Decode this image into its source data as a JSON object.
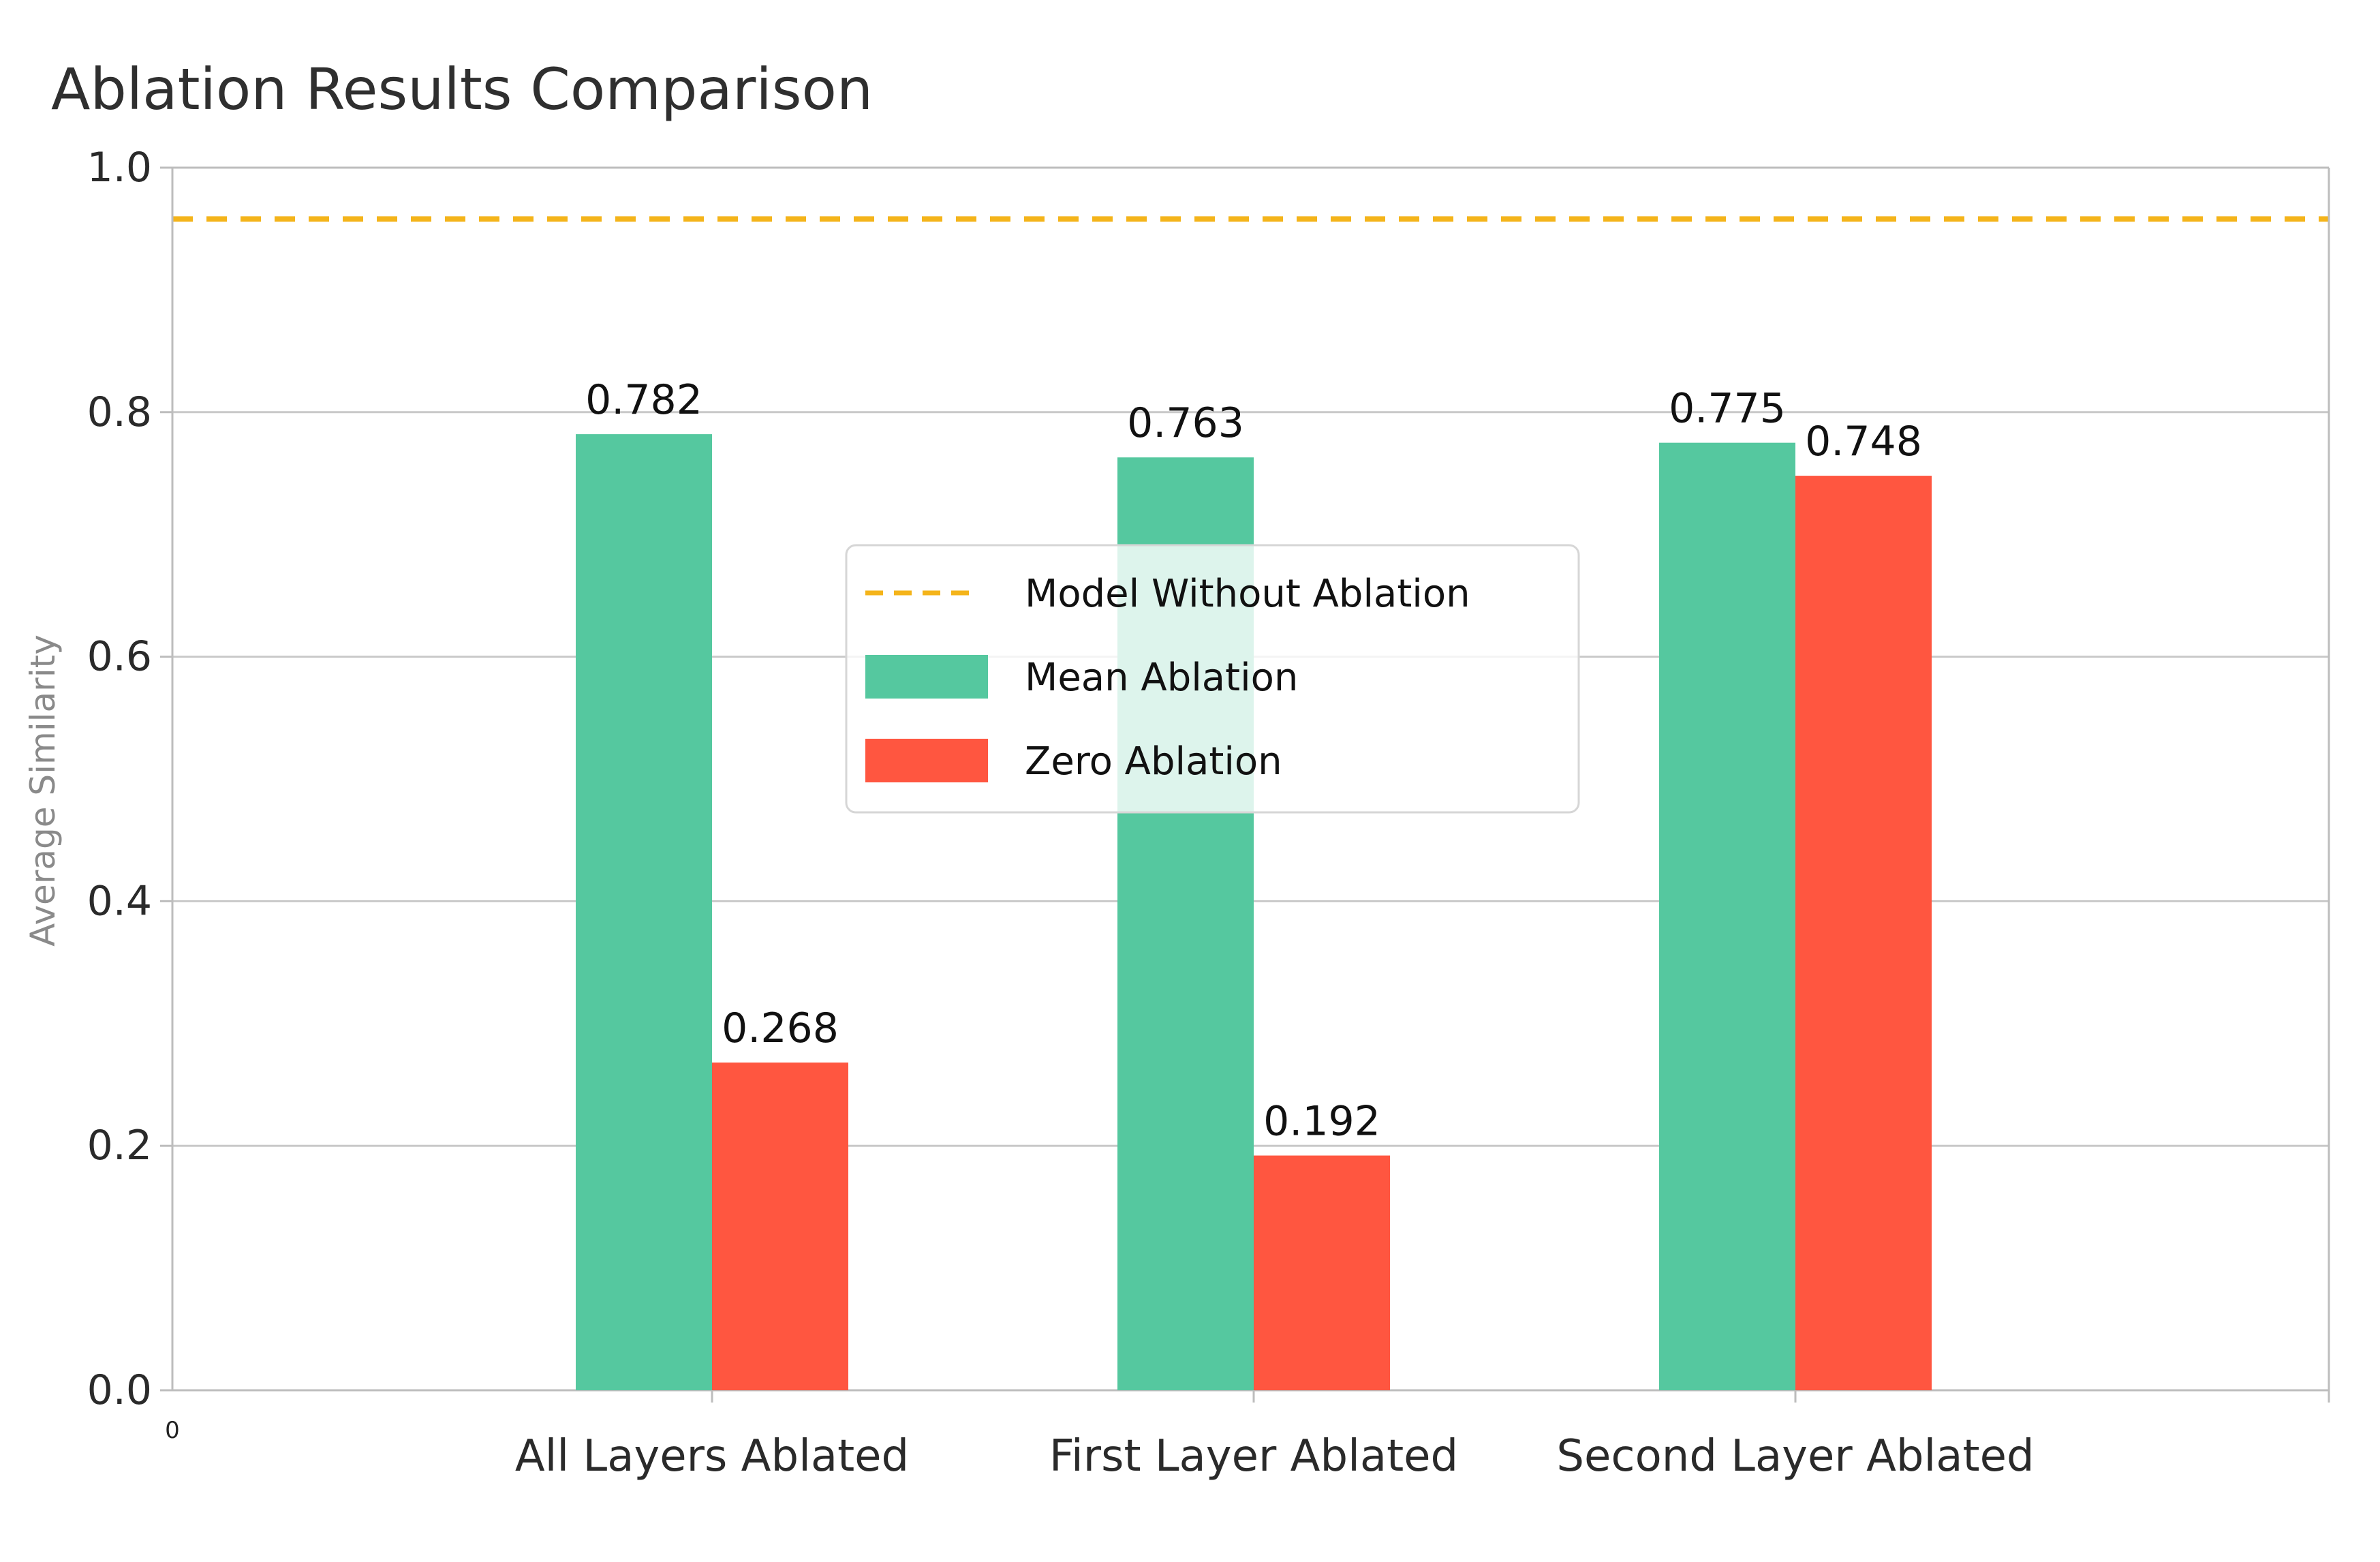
{
  "chart_data": {
    "type": "bar",
    "title": "Ablation Results Comparison",
    "xlabel": "",
    "ylabel": "Average Similarity",
    "ylim": [
      0,
      1.0
    ],
    "yticks": [
      "0.0",
      "0.2",
      "0.4",
      "0.6",
      "0.8",
      "1.0"
    ],
    "x_corner_label": "0",
    "categories": [
      "All Layers Ablated",
      "First Layer Ablated",
      "Second Layer Ablated"
    ],
    "series": [
      {
        "name": "Mean Ablation",
        "color": "#55c89f",
        "values": [
          0.782,
          0.763,
          0.775
        ],
        "labels": [
          "0.782",
          "0.763",
          "0.775"
        ]
      },
      {
        "name": "Zero Ablation",
        "color": "#ff5640",
        "values": [
          0.268,
          0.192,
          0.748
        ],
        "labels": [
          "0.268",
          "0.192",
          "0.748"
        ]
      }
    ],
    "reference_line": {
      "name": "Model Without Ablation",
      "value": 0.958,
      "color": "#f4b41a",
      "style": "dashed"
    },
    "grid": true,
    "legend_position": "center"
  }
}
